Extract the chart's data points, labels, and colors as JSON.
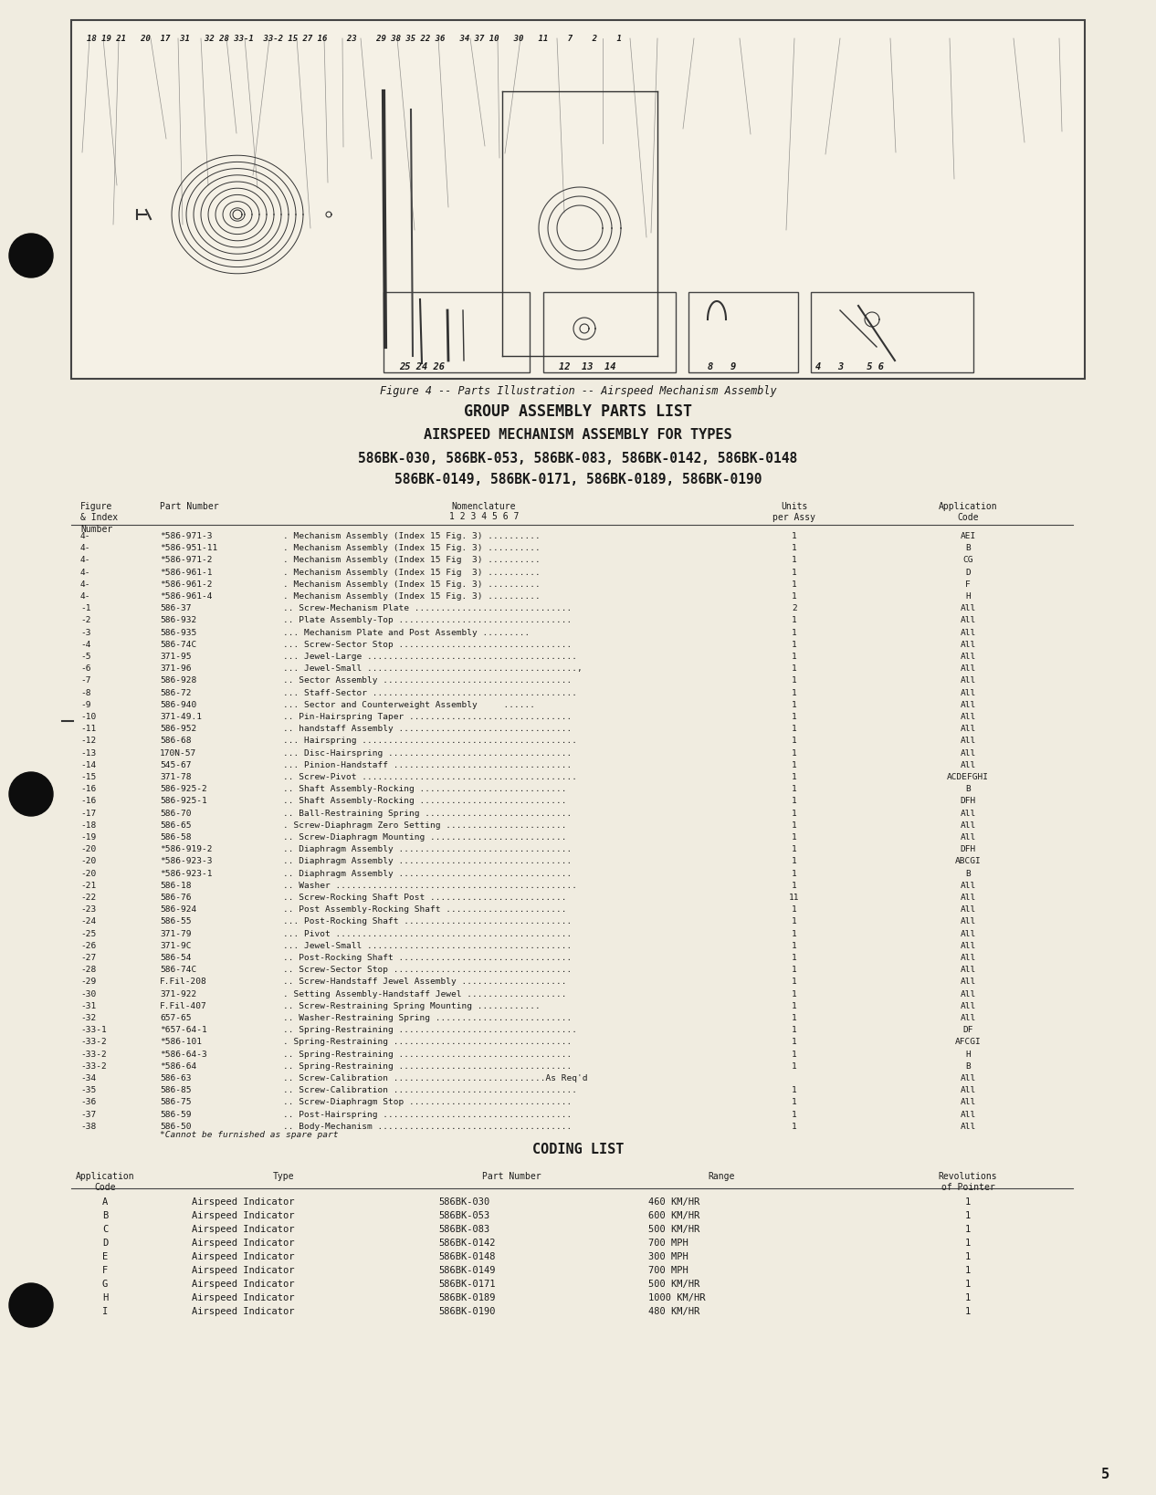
{
  "bg_color": "#f0ece0",
  "text_color": "#1a1a1a",
  "page_number": "5",
  "figure_caption": "Figure 4 -- Parts Illustration -- Airspeed Mechanism Assembly",
  "title1": "GROUP ASSEMBLY PARTS LIST",
  "title2": "AIRSPEED MECHANISM ASSEMBLY FOR TYPES",
  "title3": "586BK-030, 586BK-053, 586BK-083, 586BK-0142, 586BK-0148",
  "title4": "586BK-0149, 586BK-0171, 586BK-0189, 586BK-0190",
  "parts_list": [
    [
      "4-",
      "*586-971-3",
      ". Mechanism Assembly (Index 15 Fig. 3) ..........",
      "1",
      "AEI"
    ],
    [
      "4-",
      "*586-951-11",
      ". Mechanism Assembly (Index 15 Fig. 3) ..........",
      "1",
      "B"
    ],
    [
      "4-",
      "*586-971-2",
      ". Mechanism Assembly (Index 15 Fig  3) ..........",
      "1",
      "CG"
    ],
    [
      "4-",
      "*586-961-1",
      ". Mechanism Assembly (Index 15 Fig  3) ..........",
      "1",
      "D"
    ],
    [
      "4-",
      "*586-961-2",
      ". Mechanism Assembly (Index 15 Fig. 3) ..........",
      "1",
      "F"
    ],
    [
      "4-",
      "*586-961-4",
      ". Mechanism Assembly (Index 15 Fig. 3) ..........",
      "1",
      "H"
    ],
    [
      "-1",
      "586-37",
      ".. Screw-Mechanism Plate ..............................",
      "2",
      "All"
    ],
    [
      "-2",
      "586-932",
      ".. Plate Assembly-Top .................................",
      "1",
      "All"
    ],
    [
      "-3",
      "586-935",
      "... Mechanism Plate and Post Assembly .........",
      "1",
      "All"
    ],
    [
      "-4",
      "586-74C",
      "... Screw-Sector Stop .................................",
      "1",
      "All"
    ],
    [
      "-5",
      "371-95",
      "... Jewel-Large ........................................",
      "1",
      "All"
    ],
    [
      "-6",
      "371-96",
      "... Jewel-Small ........................................,",
      "1",
      "All"
    ],
    [
      "-7",
      "586-928",
      ".. Sector Assembly ....................................",
      "1",
      "All"
    ],
    [
      "-8",
      "586-72",
      "... Staff-Sector .......................................",
      "1",
      "All"
    ],
    [
      "-9",
      "586-940",
      "... Sector and Counterweight Assembly     ......",
      "1",
      "All"
    ],
    [
      "-10",
      "371-49.1",
      ".. Pin-Hairspring Taper ...............................",
      "1",
      "All"
    ],
    [
      "-11",
      "586-952",
      ".. handstaff Assembly .................................",
      "1",
      "All"
    ],
    [
      "-12",
      "586-68",
      "... Hairspring .........................................",
      "1",
      "All"
    ],
    [
      "-13",
      "170N-57",
      "... Disc-Hairspring ...................................",
      "1",
      "All"
    ],
    [
      "-14",
      "545-67",
      "... Pinion-Handstaff ..................................",
      "1",
      "All"
    ],
    [
      "-15",
      "371-78",
      ".. Screw-Pivot .........................................",
      "1",
      "ACDEFGHI"
    ],
    [
      "-16",
      "586-925-2",
      ".. Shaft Assembly-Rocking ............................",
      "1",
      "B"
    ],
    [
      "-16",
      "586-925-1",
      ".. Shaft Assembly-Rocking ............................",
      "1",
      "DFH"
    ],
    [
      "-17",
      "586-70",
      ".. Ball-Restraining Spring ............................",
      "1",
      "All"
    ],
    [
      "-18",
      "586-65",
      ". Screw-Diaphragm Zero Setting .......................",
      "1",
      "All"
    ],
    [
      "-19",
      "586-58",
      ".. Screw-Diaphragm Mounting ..........................",
      "1",
      "All"
    ],
    [
      "-20",
      "*586-919-2",
      ".. Diaphragm Assembly .................................",
      "1",
      "DFH"
    ],
    [
      "-20",
      "*586-923-3",
      ".. Diaphragm Assembly .................................",
      "1",
      "ABCGI"
    ],
    [
      "-20",
      "*586-923-1",
      ".. Diaphragm Assembly .................................",
      "1",
      "B"
    ],
    [
      "-21",
      "586-18",
      ".. Washer ..............................................",
      "1",
      "All"
    ],
    [
      "-22",
      "586-76",
      ".. Screw-Rocking Shaft Post ..........................",
      "11",
      "All"
    ],
    [
      "-23",
      "586-924",
      ".. Post Assembly-Rocking Shaft .......................",
      "1",
      "All"
    ],
    [
      "-24",
      "586-55",
      "... Post-Rocking Shaft ................................",
      "1",
      "All"
    ],
    [
      "-25",
      "371-79",
      "... Pivot .............................................",
      "1",
      "All"
    ],
    [
      "-26",
      "371-9C",
      "... Jewel-Small .......................................",
      "1",
      "All"
    ],
    [
      "-27",
      "586-54",
      ".. Post-Rocking Shaft .................................",
      "1",
      "All"
    ],
    [
      "-28",
      "586-74C",
      ".. Screw-Sector Stop ..................................",
      "1",
      "All"
    ],
    [
      "-29",
      "F.Fil-208",
      ".. Screw-Handstaff Jewel Assembly ....................",
      "1",
      "All"
    ],
    [
      "-30",
      "371-922",
      ". Setting Assembly-Handstaff Jewel ...................",
      "1",
      "All"
    ],
    [
      "-31",
      "F.Fil-407",
      ".. Screw-Restraining Spring Mounting ............",
      "1",
      "All"
    ],
    [
      "-32",
      "657-65",
      ".. Washer-Restraining Spring ..........................",
      "1",
      "All"
    ],
    [
      "-33-1",
      "*657-64-1",
      ".. Spring-Restraining ..................................",
      "1",
      "DF"
    ],
    [
      "-33-2",
      "*586-101",
      ". Spring-Restraining ..................................",
      "1",
      "AFCGI"
    ],
    [
      "-33-2",
      "*586-64-3",
      ".. Spring-Restraining .................................",
      "1",
      "H"
    ],
    [
      "-33-2",
      "*586-64",
      ".. Spring-Restraining .................................",
      "1",
      "B"
    ],
    [
      "-34",
      "586-63",
      ".. Screw-Calibration .............................As Req'd",
      "",
      "All"
    ],
    [
      "-35",
      "586-85",
      ".. Screw-Calibration ...................................",
      "1",
      "All"
    ],
    [
      "-36",
      "586-75",
      ".. Screw-Diaphragm Stop ...............................",
      "1",
      "All"
    ],
    [
      "-37",
      "586-59",
      ".. Post-Hairspring ....................................",
      "1",
      "All"
    ],
    [
      "-38",
      "586-50",
      ".. Body-Mechanism .....................................",
      "1",
      "All"
    ]
  ],
  "spare_note": "*Cannot be furnished as spare part",
  "coding_title": "CODING LIST",
  "coding_list": [
    [
      "A",
      "Airspeed Indicator",
      "586BK-030",
      "460 KM/HR",
      "1"
    ],
    [
      "B",
      "Airspeed Indicator",
      "586BK-053",
      "600 KM/HR",
      "1"
    ],
    [
      "C",
      "Airspeed Indicator",
      "586BK-083",
      "500 KM/HR",
      "1"
    ],
    [
      "D",
      "Airspeed Indicator",
      "586BK-0142",
      "700 MPH",
      "1"
    ],
    [
      "E",
      "Airspeed Indicator",
      "586BK-0148",
      "300 MPH",
      "1"
    ],
    [
      "F",
      "Airspeed Indicator",
      "586BK-0149",
      "700 MPH",
      "1"
    ],
    [
      "G",
      "Airspeed Indicator",
      "586BK-0171",
      "500 KM/HR",
      "1"
    ],
    [
      "H",
      "Airspeed Indicator",
      "586BK-0189",
      "1000 KM/HR",
      "1"
    ],
    [
      "I",
      "Airspeed Indicator",
      "586BK-0190",
      "480 KM/HR",
      "1"
    ]
  ],
  "illus_top_numbers": "18 19 21   20  17  31  32 28 33-1  33-2 15 27 16   23   29 38 35 22 36  34 37 10  30  11   7    2    1",
  "subbox_labels": [
    [
      "25 24 26",
      455
    ],
    [
      "12  13  14",
      636
    ],
    [
      "8   9",
      800
    ],
    [
      "4   3    5 6",
      955
    ]
  ]
}
